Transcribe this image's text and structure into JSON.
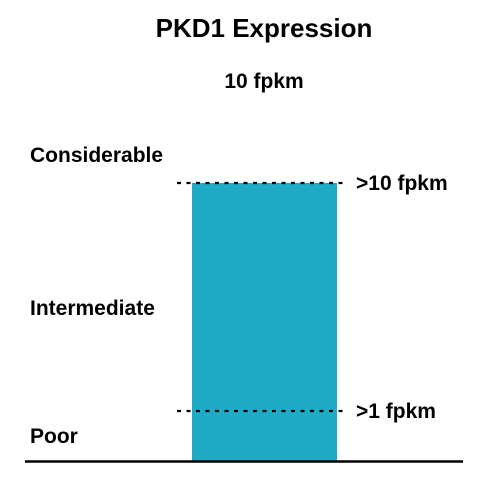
{
  "chart_data": {
    "type": "bar",
    "title": "PKD1 Expression",
    "subtitle": "10 fpkm",
    "categories": [
      "PKD1"
    ],
    "values": [
      10
    ],
    "unit": "fpkm",
    "levels": [
      {
        "name": "Poor"
      },
      {
        "name": "Intermediate"
      },
      {
        "name": "Considerable"
      }
    ],
    "thresholds": [
      {
        "value": 1,
        "label": ">1 fpkm"
      },
      {
        "value": 10,
        "label": ">10 fpkm"
      }
    ],
    "bar_color": "#1FAAC5",
    "line_color": "#000000"
  }
}
